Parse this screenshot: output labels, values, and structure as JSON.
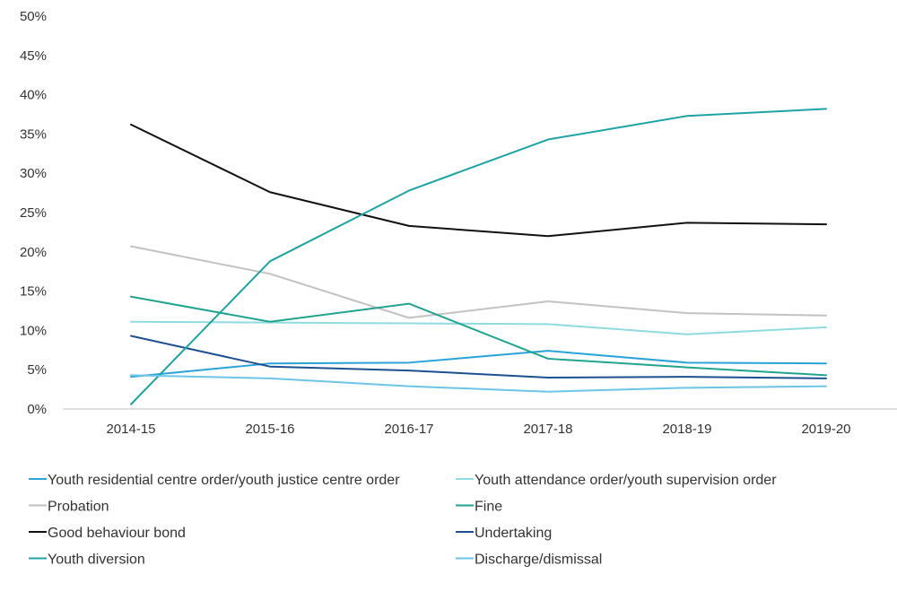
{
  "chart_data": {
    "type": "line",
    "title": "",
    "xlabel": "",
    "ylabel": "",
    "categories": [
      "2014-15",
      "2015-16",
      "2016-17",
      "2017-18",
      "2018-19",
      "2019-20"
    ],
    "ylim": [
      0,
      50
    ],
    "yticks": [
      "0%",
      "5%",
      "10%",
      "15%",
      "20%",
      "25%",
      "30%",
      "35%",
      "40%",
      "45%",
      "50%"
    ],
    "grid": false,
    "legend_position": "bottom",
    "series": [
      {
        "name": "Youth residential centre order/youth justice centre order",
        "color": "#29a3d8",
        "values": [
          4.1,
          5.8,
          5.9,
          7.4,
          5.9,
          5.8
        ]
      },
      {
        "name": "Youth attendance order/youth supervision order",
        "color": "#8fdbe0",
        "values": [
          11.1,
          11.0,
          10.9,
          10.8,
          9.5,
          10.4
        ]
      },
      {
        "name": "Probation",
        "color": "#c2c2c2",
        "values": [
          20.7,
          17.2,
          11.6,
          13.7,
          12.2,
          11.9
        ]
      },
      {
        "name": "Fine",
        "color": "#21a38f",
        "values": [
          14.3,
          11.1,
          13.4,
          6.4,
          5.3,
          4.3
        ]
      },
      {
        "name": "Good behaviour bond",
        "color": "#111111",
        "values": [
          36.2,
          27.6,
          23.3,
          22.0,
          23.7,
          23.5
        ]
      },
      {
        "name": "Undertaking",
        "color": "#1d4f91",
        "values": [
          9.3,
          5.4,
          4.9,
          4.0,
          4.1,
          3.9
        ]
      },
      {
        "name": "Youth diversion",
        "color": "#1ea3a5",
        "values": [
          0.6,
          18.8,
          27.8,
          34.3,
          37.3,
          38.2
        ]
      },
      {
        "name": "Discharge/dismissal",
        "color": "#6cc4e6",
        "values": [
          4.3,
          3.9,
          2.9,
          2.2,
          2.7,
          2.9
        ]
      }
    ]
  }
}
